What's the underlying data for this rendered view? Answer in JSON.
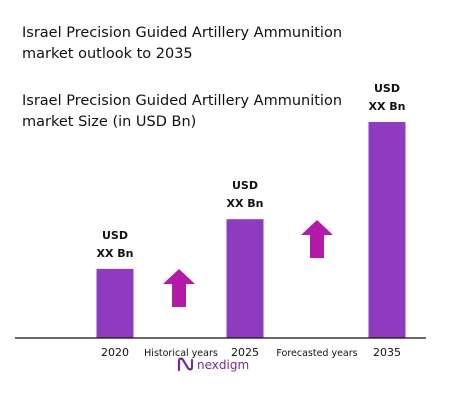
{
  "header": {
    "title_line1": "Israel Precision Guided Artillery Ammunition",
    "title_line2": "market outlook to 2035",
    "subtitle_line1": "Israel Precision Guided Artillery Ammunition",
    "subtitle_line2": "market Size (in USD Bn)"
  },
  "chart_data": {
    "type": "bar",
    "categories": [
      "2020",
      "2025",
      "2035"
    ],
    "values": [
      0.32,
      0.55,
      1.0
    ],
    "value_labels": [
      [
        "USD",
        "XX Bn"
      ],
      [
        "USD",
        "XX Bn"
      ],
      [
        "USD",
        "XX Bn"
      ]
    ],
    "x_annotations": [
      "Historical years",
      "Forecasted years"
    ],
    "bar_color": "#8e3bbf",
    "arrow_color": "#b31aa8",
    "ylim": [
      0,
      1.0
    ],
    "grid": false,
    "legend": "none"
  },
  "branding": {
    "logo_text": "nexdigm",
    "logo_color": "#7a2a90"
  }
}
